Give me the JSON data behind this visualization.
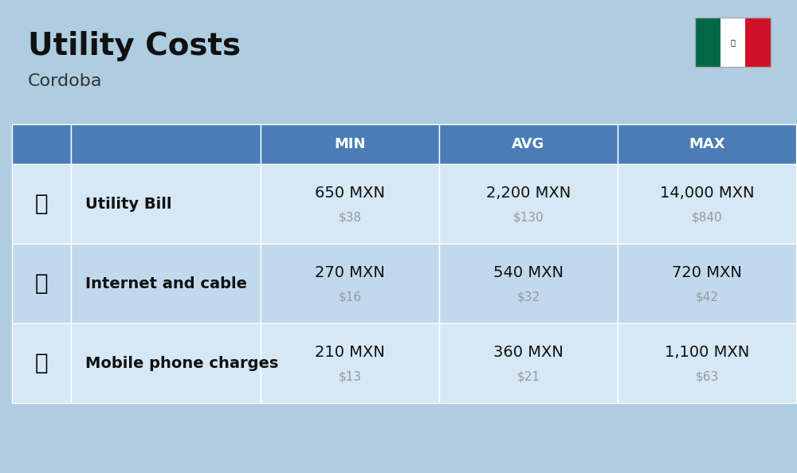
{
  "title": "Utility Costs",
  "subtitle": "Cordoba",
  "background_color": "#aecde0",
  "header_color": "#4a7db5",
  "header_text_color": "#ffffff",
  "row_colors": [
    "#d6e8f5",
    "#c2d9ed"
  ],
  "col_header_labels": [
    "MIN",
    "AVG",
    "MAX"
  ],
  "rows": [
    {
      "label": "Utility Bill",
      "min_mxn": "650 MXN",
      "min_usd": "$38",
      "avg_mxn": "2,200 MXN",
      "avg_usd": "$130",
      "max_mxn": "14,000 MXN",
      "max_usd": "$840"
    },
    {
      "label": "Internet and cable",
      "min_mxn": "270 MXN",
      "min_usd": "$16",
      "avg_mxn": "540 MXN",
      "avg_usd": "$32",
      "max_mxn": "720 MXN",
      "max_usd": "$42"
    },
    {
      "label": "Mobile phone charges",
      "min_mxn": "210 MXN",
      "min_usd": "$13",
      "avg_mxn": "360 MXN",
      "avg_usd": "$21",
      "max_mxn": "1,100 MXN",
      "max_usd": "$63"
    }
  ],
  "title_fontsize": 28,
  "subtitle_fontsize": 16,
  "header_fontsize": 13,
  "cell_mxn_fontsize": 14,
  "cell_usd_fontsize": 11,
  "label_fontsize": 14
}
